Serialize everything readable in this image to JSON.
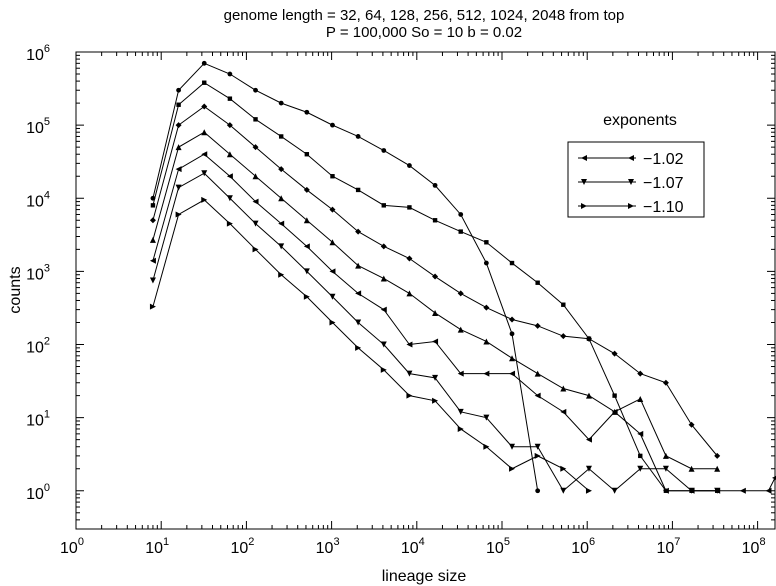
{
  "chart_data": {
    "type": "line",
    "title": "genome length = 32, 64, 128, 256, 512, 1024, 2048 from top",
    "subtitle": "P = 100,000  So = 10  b = 0.02",
    "xlabel": "lineage size",
    "ylabel": "counts",
    "xscale": "log",
    "yscale": "log",
    "xlim": [
      1,
      160000000
    ],
    "ylim": [
      0.3,
      1000000
    ],
    "x_ticks": [
      1,
      10,
      100,
      1000,
      10000,
      100000,
      1000000,
      10000000,
      100000000
    ],
    "x_tick_labels": [
      [
        "10",
        "0"
      ],
      [
        "10",
        "1"
      ],
      [
        "10",
        "2"
      ],
      [
        "10",
        "3"
      ],
      [
        "10",
        "4"
      ],
      [
        "10",
        "5"
      ],
      [
        "10",
        "6"
      ],
      [
        "10",
        "7"
      ],
      [
        "10",
        "8"
      ]
    ],
    "y_ticks": [
      1,
      10,
      100,
      1000,
      10000,
      100000,
      1000000
    ],
    "y_tick_labels": [
      [
        "10",
        "0"
      ],
      [
        "10",
        "1"
      ],
      [
        "10",
        "2"
      ],
      [
        "10",
        "3"
      ],
      [
        "10",
        "4"
      ],
      [
        "10",
        "5"
      ],
      [
        "10",
        "6"
      ]
    ],
    "legend": {
      "title": "exponents",
      "placement": "top-right",
      "entries": [
        {
          "label": "−1.02",
          "marker": "triangle-left"
        },
        {
          "label": "−1.07",
          "marker": "triangle-down"
        },
        {
          "label": "−1.10",
          "marker": "triangle-right"
        }
      ]
    },
    "series": [
      {
        "marker": "circle",
        "points": [
          [
            8,
            10000
          ],
          [
            16,
            300000
          ],
          [
            32,
            700000
          ],
          [
            64,
            500000
          ],
          [
            128,
            300000
          ],
          [
            256,
            200000
          ],
          [
            512,
            150000
          ],
          [
            1024,
            100000
          ],
          [
            2048,
            70000
          ],
          [
            4096,
            45000
          ],
          [
            8192,
            28000
          ],
          [
            16384,
            15000
          ],
          [
            32768,
            6000
          ],
          [
            65536,
            1300
          ],
          [
            131072,
            140
          ],
          [
            262144,
            1
          ]
        ]
      },
      {
        "marker": "square",
        "points": [
          [
            8,
            8000
          ],
          [
            16,
            190000
          ],
          [
            32,
            380000
          ],
          [
            64,
            230000
          ],
          [
            128,
            120000
          ],
          [
            256,
            70000
          ],
          [
            512,
            40000
          ],
          [
            1024,
            20000
          ],
          [
            2048,
            13000
          ],
          [
            4096,
            8000
          ],
          [
            8192,
            7500
          ],
          [
            16384,
            5000
          ],
          [
            32768,
            3500
          ],
          [
            65536,
            2500
          ],
          [
            131072,
            1300
          ],
          [
            262144,
            700
          ],
          [
            524288,
            350
          ],
          [
            1048576,
            120
          ],
          [
            2097152,
            20
          ],
          [
            4194304,
            3
          ],
          [
            8388608,
            1
          ],
          [
            16777216,
            1
          ],
          [
            33554432,
            1
          ]
        ]
      },
      {
        "marker": "diamond",
        "points": [
          [
            8,
            5000
          ],
          [
            16,
            100000
          ],
          [
            32,
            180000
          ],
          [
            64,
            100000
          ],
          [
            128,
            50000
          ],
          [
            256,
            25000
          ],
          [
            512,
            13000
          ],
          [
            1024,
            7000
          ],
          [
            2048,
            3500
          ],
          [
            4096,
            2200
          ],
          [
            8192,
            1500
          ],
          [
            16384,
            850
          ],
          [
            32768,
            500
          ],
          [
            65536,
            320
          ],
          [
            131072,
            220
          ],
          [
            262144,
            180
          ],
          [
            524288,
            130
          ],
          [
            1048576,
            120
          ],
          [
            2097152,
            75
          ],
          [
            4194304,
            40
          ],
          [
            8388608,
            30
          ],
          [
            16777216,
            8
          ],
          [
            33554432,
            3
          ]
        ]
      },
      {
        "marker": "triangle-up",
        "points": [
          [
            8,
            2700
          ],
          [
            16,
            50000
          ],
          [
            32,
            80000
          ],
          [
            64,
            40000
          ],
          [
            128,
            20000
          ],
          [
            256,
            10000
          ],
          [
            512,
            5000
          ],
          [
            1024,
            2500
          ],
          [
            2048,
            1200
          ],
          [
            4096,
            800
          ],
          [
            8192,
            500
          ],
          [
            16384,
            270
          ],
          [
            32768,
            160
          ],
          [
            65536,
            110
          ],
          [
            131072,
            65
          ],
          [
            262144,
            40
          ],
          [
            524288,
            25
          ],
          [
            1048576,
            20
          ],
          [
            2097152,
            12
          ],
          [
            4194304,
            18
          ],
          [
            8388608,
            3
          ],
          [
            16777216,
            2
          ],
          [
            33554432,
            2
          ]
        ]
      },
      {
        "marker": "triangle-left",
        "points": [
          [
            8,
            1400
          ],
          [
            16,
            25000
          ],
          [
            32,
            40000
          ],
          [
            64,
            20000
          ],
          [
            128,
            9000
          ],
          [
            256,
            4500
          ],
          [
            512,
            2200
          ],
          [
            1024,
            1000
          ],
          [
            2048,
            500
          ],
          [
            4096,
            300
          ],
          [
            8192,
            100
          ],
          [
            16384,
            110
          ],
          [
            32768,
            40
          ],
          [
            65536,
            40
          ],
          [
            131072,
            40
          ],
          [
            262144,
            20
          ],
          [
            524288,
            12
          ],
          [
            1048576,
            5
          ],
          [
            2097152,
            12
          ],
          [
            4194304,
            6
          ],
          [
            8388608,
            1
          ],
          [
            16777216,
            1
          ],
          [
            33554432,
            1
          ],
          [
            67108864,
            1
          ],
          [
            134217728,
            1
          ],
          [
            160000000,
            1.5
          ]
        ]
      },
      {
        "marker": "triangle-down",
        "points": [
          [
            8,
            750
          ],
          [
            16,
            14000
          ],
          [
            32,
            22000
          ],
          [
            64,
            10000
          ],
          [
            128,
            4500
          ],
          [
            256,
            2200
          ],
          [
            512,
            1000
          ],
          [
            1024,
            450
          ],
          [
            2048,
            200
          ],
          [
            4096,
            100
          ],
          [
            8192,
            40
          ],
          [
            16384,
            35
          ],
          [
            32768,
            12
          ],
          [
            65536,
            10
          ],
          [
            131072,
            4
          ],
          [
            262144,
            4
          ],
          [
            524288,
            1
          ],
          [
            1048576,
            2
          ],
          [
            2097152,
            1
          ],
          [
            4194304,
            2
          ],
          [
            8388608,
            2
          ],
          [
            16777216,
            1
          ],
          [
            33554432,
            1
          ]
        ]
      },
      {
        "marker": "triangle-right",
        "points": [
          [
            8,
            330
          ],
          [
            16,
            6000
          ],
          [
            32,
            9500
          ],
          [
            64,
            4500
          ],
          [
            128,
            2000
          ],
          [
            256,
            900
          ],
          [
            512,
            450
          ],
          [
            1024,
            200
          ],
          [
            2048,
            90
          ],
          [
            4096,
            45
          ],
          [
            8192,
            20
          ],
          [
            16384,
            17
          ],
          [
            32768,
            7
          ],
          [
            65536,
            4
          ],
          [
            131072,
            2
          ],
          [
            262144,
            3
          ],
          [
            524288,
            2
          ],
          [
            1048576,
            1
          ]
        ]
      }
    ]
  }
}
